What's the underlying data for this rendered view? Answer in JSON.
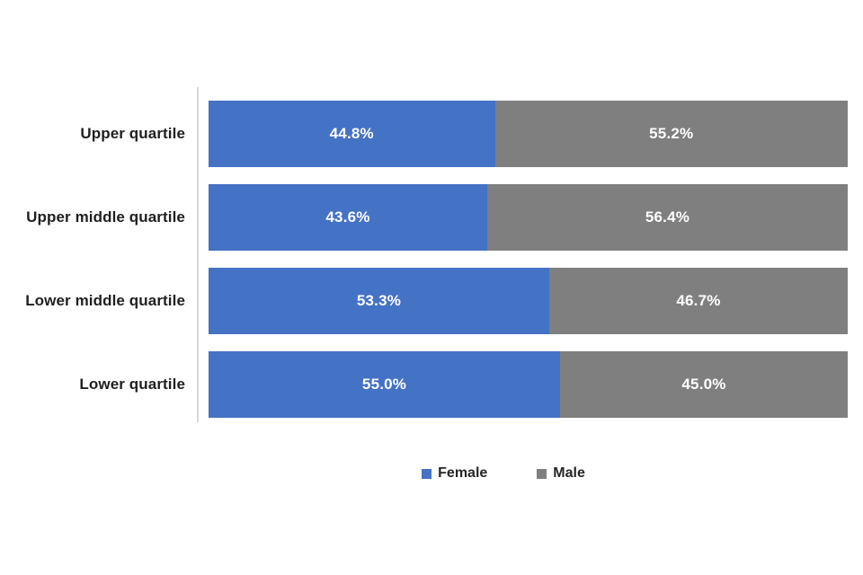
{
  "chart_data": {
    "type": "bar",
    "orientation": "horizontal",
    "stacked": true,
    "stacked_total": 100,
    "title": "",
    "xlabel": "",
    "ylabel": "",
    "xlim": [
      0,
      100
    ],
    "grid": false,
    "legend_position": "bottom",
    "categories": [
      "Upper quartile",
      "Upper middle quartile",
      "Lower middle quartile",
      "Lower quartile"
    ],
    "series": [
      {
        "name": "Female",
        "color": "#4472C4",
        "values": [
          44.8,
          43.6,
          53.3,
          55.0
        ]
      },
      {
        "name": "Male",
        "color": "#7F7F7F",
        "values": [
          55.2,
          56.4,
          46.7,
          45.0
        ]
      }
    ],
    "data_labels": [
      [
        "44.8%",
        "55.2%"
      ],
      [
        "43.6%",
        "56.4%"
      ],
      [
        "53.3%",
        "46.7%"
      ],
      [
        "55.0%",
        "45.0%"
      ]
    ]
  },
  "colors": {
    "background": "#FFFFFF",
    "axis_line": "#D9D9D9",
    "category_text": "#1F1F1F",
    "data_label_text": "#FFFFFF",
    "legend_text": "#262626"
  }
}
